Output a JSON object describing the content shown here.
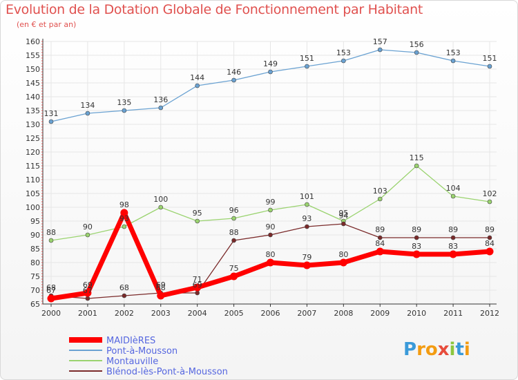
{
  "colors": {
    "title": "#e0514f",
    "legend_text": "#5566e0",
    "grid": "#e6e6e6"
  },
  "chart_data": {
    "type": "line",
    "title": "Evolution de la Dotation Globale de Fonctionnement par Habitant",
    "subtitle": "(en € et par an)",
    "xlabel": "",
    "ylabel": "",
    "categories": [
      "2000",
      "2001",
      "2002",
      "2003",
      "2004",
      "2005",
      "2006",
      "2007",
      "2008",
      "2009",
      "2010",
      "2011",
      "2012"
    ],
    "ylim": [
      65,
      160
    ],
    "ytick_step": 5,
    "grid": true,
    "legend_position": "bottom-left",
    "series": [
      {
        "name": "MAIDIèRES",
        "color": "#ff0000",
        "width": 7,
        "values": [
          67,
          69,
          98,
          68,
          71,
          75,
          80,
          79,
          80,
          84,
          83,
          83,
          84
        ],
        "labels": [
          "67",
          "69",
          "98",
          "68",
          "71",
          "75",
          "80",
          "79",
          "80",
          "84",
          "83",
          "83",
          "84"
        ]
      },
      {
        "name": "Pont-à-Mousson",
        "color": "#6aa2d2",
        "width": 1.3,
        "values": [
          131,
          134,
          135,
          136,
          144,
          146,
          149,
          151,
          153,
          157,
          156,
          153,
          151
        ],
        "labels": [
          "131",
          "134",
          "135",
          "136",
          "144",
          "146",
          "149",
          "151",
          "153",
          "157",
          "156",
          "153",
          "151"
        ]
      },
      {
        "name": "Montauville",
        "color": "#9ad36f",
        "width": 1.3,
        "values": [
          88,
          90,
          93,
          100,
          95,
          96,
          99,
          101,
          95,
          103,
          115,
          104,
          102
        ],
        "labels": [
          "88",
          "90",
          "93",
          "100",
          "95",
          "96",
          "99",
          "101",
          "95",
          "103",
          "115",
          "104",
          "102"
        ]
      },
      {
        "name": "Blénod-lès-Pont-à-Mousson",
        "color": "#7a2a2a",
        "width": 1.3,
        "values": [
          68,
          67,
          68,
          69,
          69,
          88,
          90,
          93,
          94,
          89,
          89,
          89,
          89
        ],
        "labels": [
          "68",
          "67",
          "68",
          "69",
          "69",
          "88",
          "90",
          "93",
          "94",
          "89",
          "89",
          "89",
          "89"
        ]
      }
    ]
  },
  "logo": {
    "text": "Proxiti"
  }
}
